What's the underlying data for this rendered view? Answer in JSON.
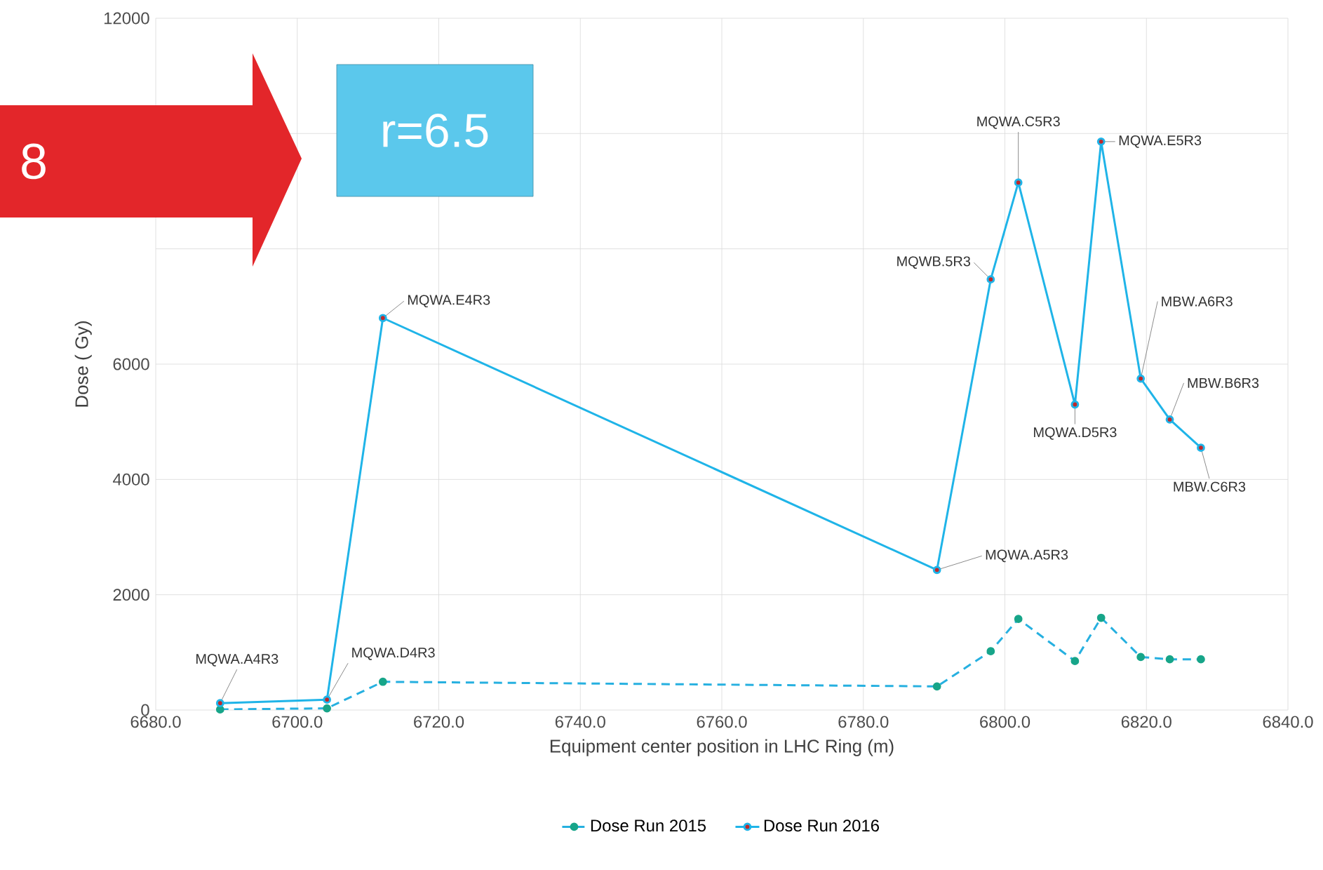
{
  "chart_data": {
    "type": "line",
    "xlabel": "Equipment center position in LHC Ring (m)",
    "ylabel": "Dose ( Gy)",
    "xlim": [
      6680,
      6840
    ],
    "xticks": [
      {
        "value": 6680,
        "label": "6680.0"
      },
      {
        "value": 6700,
        "label": "6700.0"
      },
      {
        "value": 6720,
        "label": "6720.0"
      },
      {
        "value": 6740,
        "label": "6740.0"
      },
      {
        "value": 6760,
        "label": "6760.0"
      },
      {
        "value": 6780,
        "label": "6780.0"
      },
      {
        "value": 6800,
        "label": "6800.0"
      },
      {
        "value": 6820,
        "label": "6820.0"
      },
      {
        "value": 6840,
        "label": "6840.0"
      }
    ],
    "ylim": [
      0,
      12000
    ],
    "yticks": [
      0,
      2000,
      4000,
      6000,
      {
        "value": 8000,
        "label": null
      },
      {
        "value": 10000,
        "label": null
      },
      12000
    ],
    "grid": true,
    "legend": "bottom",
    "marker": "circle",
    "x": [
      6689.1,
      6704.2,
      6712.1,
      6790.4,
      6798.0,
      6801.9,
      6809.9,
      6813.6,
      6819.2,
      6823.3,
      6827.7
    ],
    "series": [
      {
        "name": "Dose Run 2015",
        "color": "#26b0e0",
        "line_style": "dashed",
        "values": [
          10,
          30,
          490,
          410,
          1020,
          1580,
          850,
          1600,
          920,
          880,
          880
        ]
      },
      {
        "name": "Dose Run 2016",
        "color": "#1fb4e8",
        "line_style": "solid",
        "values": [
          120,
          180,
          6800,
          2430,
          7470,
          9150,
          5300,
          9860,
          5750,
          5040,
          4550
        ]
      }
    ],
    "annotations": [
      {
        "text": "MQWA.A4R3",
        "x": 6689.1,
        "y": 120
      },
      {
        "text": "MQWA.D4R3",
        "x": 6704.2,
        "y": 180
      },
      {
        "text": "MQWA.E4R3",
        "x": 6712.1,
        "y": 6800
      },
      {
        "text": "MQWA.A5R3",
        "x": 6790.4,
        "y": 2430
      },
      {
        "text": "MQWB.5R3",
        "x": 6798.0,
        "y": 7470
      },
      {
        "text": "MQWA.C5R3",
        "x": 6801.9,
        "y": 9150
      },
      {
        "text": "MQWA.D5R3",
        "x": 6809.9,
        "y": 5300
      },
      {
        "text": "MQWA.E5R3",
        "x": 6813.6,
        "y": 9860
      },
      {
        "text": "MBW.A6R3",
        "x": 6819.2,
        "y": 5750
      },
      {
        "text": "MBW.B6R3",
        "x": 6823.3,
        "y": 5040
      },
      {
        "text": "MBW.C6R3",
        "x": 6827.7,
        "y": 4550
      },
      "8",
      "r=6.5"
    ]
  }
}
